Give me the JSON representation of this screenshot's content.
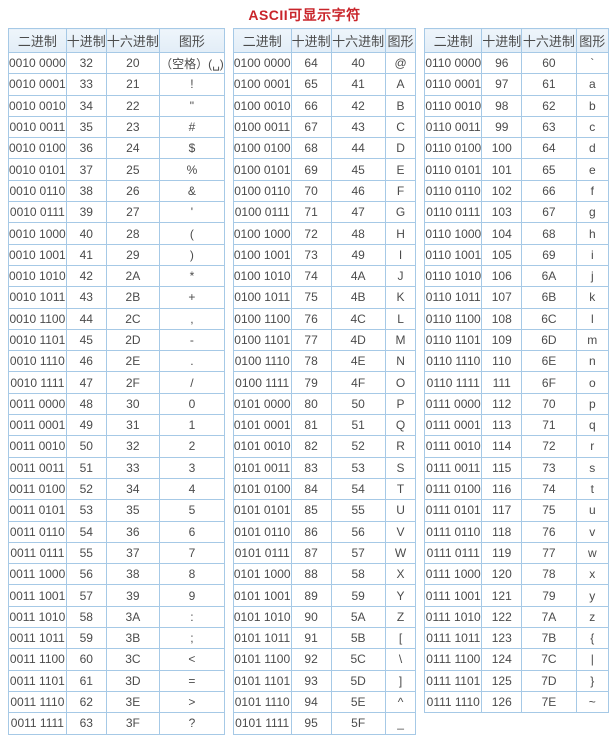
{
  "page": {
    "title": "ASCII可显示字符"
  },
  "colors": {
    "title_red": "#c9252b",
    "table_border_blue": "#a6c9e6",
    "header_bg_blue": "#e6eff7",
    "cell_text_gray": "#4b4b4b",
    "page_bg": "#ffffff"
  },
  "tables": [
    {
      "name": "ascii-32-63",
      "columns": [
        "二进制",
        "十进制",
        "十六进制",
        "图形"
      ],
      "rows": [
        [
          "0010 0000",
          "32",
          "20",
          "（空格）(␣)"
        ],
        [
          "0010 0001",
          "33",
          "21",
          "!"
        ],
        [
          "0010 0010",
          "34",
          "22",
          "\""
        ],
        [
          "0010 0011",
          "35",
          "23",
          "#"
        ],
        [
          "0010 0100",
          "36",
          "24",
          "$"
        ],
        [
          "0010 0101",
          "37",
          "25",
          "%"
        ],
        [
          "0010 0110",
          "38",
          "26",
          "&"
        ],
        [
          "0010 0111",
          "39",
          "27",
          "'"
        ],
        [
          "0010 1000",
          "40",
          "28",
          "("
        ],
        [
          "0010 1001",
          "41",
          "29",
          ")"
        ],
        [
          "0010 1010",
          "42",
          "2A",
          "*"
        ],
        [
          "0010 1011",
          "43",
          "2B",
          "+"
        ],
        [
          "0010 1100",
          "44",
          "2C",
          ","
        ],
        [
          "0010 1101",
          "45",
          "2D",
          "-"
        ],
        [
          "0010 1110",
          "46",
          "2E",
          "."
        ],
        [
          "0010 1111",
          "47",
          "2F",
          "/"
        ],
        [
          "0011 0000",
          "48",
          "30",
          "0"
        ],
        [
          "0011 0001",
          "49",
          "31",
          "1"
        ],
        [
          "0011 0010",
          "50",
          "32",
          "2"
        ],
        [
          "0011 0011",
          "51",
          "33",
          "3"
        ],
        [
          "0011 0100",
          "52",
          "34",
          "4"
        ],
        [
          "0011 0101",
          "53",
          "35",
          "5"
        ],
        [
          "0011 0110",
          "54",
          "36",
          "6"
        ],
        [
          "0011 0111",
          "55",
          "37",
          "7"
        ],
        [
          "0011 1000",
          "56",
          "38",
          "8"
        ],
        [
          "0011 1001",
          "57",
          "39",
          "9"
        ],
        [
          "0011 1010",
          "58",
          "3A",
          ":"
        ],
        [
          "0011 1011",
          "59",
          "3B",
          ";"
        ],
        [
          "0011 1100",
          "60",
          "3C",
          "<"
        ],
        [
          "0011 1101",
          "61",
          "3D",
          "="
        ],
        [
          "0011 1110",
          "62",
          "3E",
          ">"
        ],
        [
          "0011 1111",
          "63",
          "3F",
          "?"
        ]
      ]
    },
    {
      "name": "ascii-64-95",
      "columns": [
        "二进制",
        "十进制",
        "十六进制",
        "图形"
      ],
      "rows": [
        [
          "0100 0000",
          "64",
          "40",
          "@"
        ],
        [
          "0100 0001",
          "65",
          "41",
          "A"
        ],
        [
          "0100 0010",
          "66",
          "42",
          "B"
        ],
        [
          "0100 0011",
          "67",
          "43",
          "C"
        ],
        [
          "0100 0100",
          "68",
          "44",
          "D"
        ],
        [
          "0100 0101",
          "69",
          "45",
          "E"
        ],
        [
          "0100 0110",
          "70",
          "46",
          "F"
        ],
        [
          "0100 0111",
          "71",
          "47",
          "G"
        ],
        [
          "0100 1000",
          "72",
          "48",
          "H"
        ],
        [
          "0100 1001",
          "73",
          "49",
          "I"
        ],
        [
          "0100 1010",
          "74",
          "4A",
          "J"
        ],
        [
          "0100 1011",
          "75",
          "4B",
          "K"
        ],
        [
          "0100 1100",
          "76",
          "4C",
          "L"
        ],
        [
          "0100 1101",
          "77",
          "4D",
          "M"
        ],
        [
          "0100 1110",
          "78",
          "4E",
          "N"
        ],
        [
          "0100 1111",
          "79",
          "4F",
          "O"
        ],
        [
          "0101 0000",
          "80",
          "50",
          "P"
        ],
        [
          "0101 0001",
          "81",
          "51",
          "Q"
        ],
        [
          "0101 0010",
          "82",
          "52",
          "R"
        ],
        [
          "0101 0011",
          "83",
          "53",
          "S"
        ],
        [
          "0101 0100",
          "84",
          "54",
          "T"
        ],
        [
          "0101 0101",
          "85",
          "55",
          "U"
        ],
        [
          "0101 0110",
          "86",
          "56",
          "V"
        ],
        [
          "0101 0111",
          "87",
          "57",
          "W"
        ],
        [
          "0101 1000",
          "88",
          "58",
          "X"
        ],
        [
          "0101 1001",
          "89",
          "59",
          "Y"
        ],
        [
          "0101 1010",
          "90",
          "5A",
          "Z"
        ],
        [
          "0101 1011",
          "91",
          "5B",
          "["
        ],
        [
          "0101 1100",
          "92",
          "5C",
          "\\"
        ],
        [
          "0101 1101",
          "93",
          "5D",
          "]"
        ],
        [
          "0101 1110",
          "94",
          "5E",
          "^"
        ],
        [
          "0101 1111",
          "95",
          "5F",
          "_"
        ]
      ]
    },
    {
      "name": "ascii-96-126",
      "columns": [
        "二进制",
        "十进制",
        "十六进制",
        "图形"
      ],
      "rows": [
        [
          "0110 0000",
          "96",
          "60",
          "`"
        ],
        [
          "0110 0001",
          "97",
          "61",
          "a"
        ],
        [
          "0110 0010",
          "98",
          "62",
          "b"
        ],
        [
          "0110 0011",
          "99",
          "63",
          "c"
        ],
        [
          "0110 0100",
          "100",
          "64",
          "d"
        ],
        [
          "0110 0101",
          "101",
          "65",
          "e"
        ],
        [
          "0110 0110",
          "102",
          "66",
          "f"
        ],
        [
          "0110 0111",
          "103",
          "67",
          "g"
        ],
        [
          "0110 1000",
          "104",
          "68",
          "h"
        ],
        [
          "0110 1001",
          "105",
          "69",
          "i"
        ],
        [
          "0110 1010",
          "106",
          "6A",
          "j"
        ],
        [
          "0110 1011",
          "107",
          "6B",
          "k"
        ],
        [
          "0110 1100",
          "108",
          "6C",
          "l"
        ],
        [
          "0110 1101",
          "109",
          "6D",
          "m"
        ],
        [
          "0110 1110",
          "110",
          "6E",
          "n"
        ],
        [
          "0110 1111",
          "111",
          "6F",
          "o"
        ],
        [
          "0111 0000",
          "112",
          "70",
          "p"
        ],
        [
          "0111 0001",
          "113",
          "71",
          "q"
        ],
        [
          "0111 0010",
          "114",
          "72",
          "r"
        ],
        [
          "0111 0011",
          "115",
          "73",
          "s"
        ],
        [
          "0111 0100",
          "116",
          "74",
          "t"
        ],
        [
          "0111 0101",
          "117",
          "75",
          "u"
        ],
        [
          "0111 0110",
          "118",
          "76",
          "v"
        ],
        [
          "0111 0111",
          "119",
          "77",
          "w"
        ],
        [
          "0111 1000",
          "120",
          "78",
          "x"
        ],
        [
          "0111 1001",
          "121",
          "79",
          "y"
        ],
        [
          "0111 1010",
          "122",
          "7A",
          "z"
        ],
        [
          "0111 1011",
          "123",
          "7B",
          "{"
        ],
        [
          "0111 1100",
          "124",
          "7C",
          "|"
        ],
        [
          "0111 1101",
          "125",
          "7D",
          "}"
        ],
        [
          "0111 1110",
          "126",
          "7E",
          "~"
        ]
      ]
    }
  ]
}
